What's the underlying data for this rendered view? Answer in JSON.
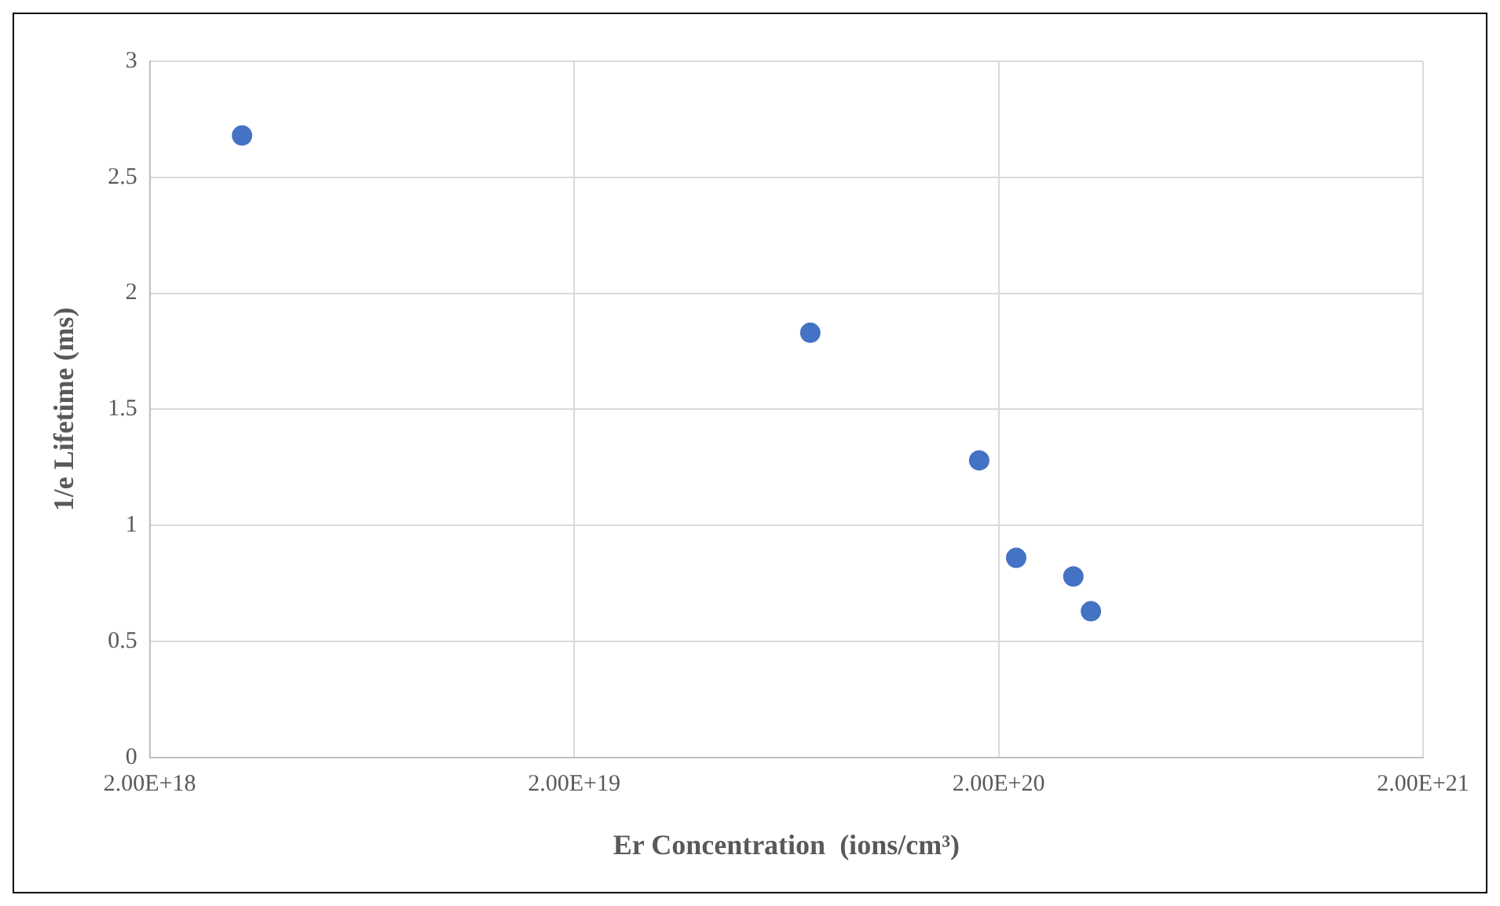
{
  "chart_data": {
    "type": "scatter",
    "xlabel": "Er Concentration  (ions/cm³)",
    "ylabel": "1/e Lifetime (ms)",
    "x": [
      3.3e+18,
      7.2e+19,
      1.8e+20,
      2.2e+20,
      3e+20,
      3.3e+20
    ],
    "series": [
      {
        "color": "#4472c4",
        "values": [
          2.68,
          1.83,
          1.28,
          0.86,
          0.78,
          0.63
        ]
      }
    ],
    "log": "x",
    "xlim": [
      2e+18,
      2e+21
    ],
    "xticks": [
      {
        "value": 2e+18,
        "label": "2.00E+18"
      },
      {
        "value": 2e+19,
        "label": "2.00E+19"
      },
      {
        "value": 2e+20,
        "label": "2.00E+20"
      },
      {
        "value": 2e+21,
        "label": "2.00E+21"
      }
    ],
    "ylim": [
      0,
      3
    ],
    "yticks": [
      0,
      0.5,
      1,
      1.5,
      2,
      2.5,
      3
    ],
    "grid": true,
    "legend": false,
    "marker": "circle"
  }
}
